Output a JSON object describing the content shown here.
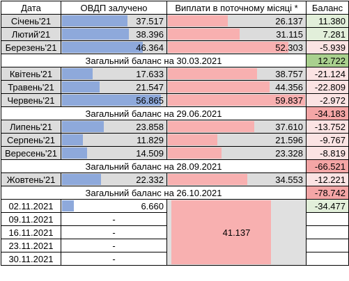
{
  "headers": {
    "date": "Дата",
    "ovdp": "ОВДП залучено",
    "payments": "Виплати в поточному місяці *",
    "balance": "Баланс"
  },
  "rows": [
    {
      "type": "month",
      "date": "Січень'21",
      "ovdp": "37.517",
      "ovdp_v": 37.517,
      "pay": "26.137",
      "pay_v": 26.137,
      "bal": "11.380",
      "bal_bg": "#e2efda"
    },
    {
      "type": "month",
      "date": "Лютий'21",
      "ovdp": "38.396",
      "ovdp_v": 38.396,
      "pay": "31.115",
      "pay_v": 31.115,
      "bal": "7.281",
      "bal_bg": "#e2efda"
    },
    {
      "type": "month",
      "date": "Березень'21",
      "ovdp": "46.364",
      "ovdp_v": 46.364,
      "pay": "52.303",
      "pay_v": 52.303,
      "bal": "-5.939",
      "bal_bg": "#fbe3e3"
    },
    {
      "type": "summary",
      "label": "Загальний баланс на 30.03.2021",
      "bal": "12.722",
      "bal_bg": "#a9d08e"
    },
    {
      "type": "month",
      "date": "Квітень'21",
      "ovdp": "17.633",
      "ovdp_v": 17.633,
      "pay": "38.757",
      "pay_v": 38.757,
      "bal": "-21.124",
      "bal_bg": "#fbe3e3"
    },
    {
      "type": "month",
      "date": "Травень'21",
      "ovdp": "21.547",
      "ovdp_v": 21.547,
      "pay": "44.356",
      "pay_v": 44.356,
      "bal": "-22.809",
      "bal_bg": "#fbe3e3"
    },
    {
      "type": "month",
      "date": "Червень'21",
      "ovdp": "56.865",
      "ovdp_v": 56.865,
      "pay": "59.837",
      "pay_v": 59.837,
      "bal": "-2.972",
      "bal_bg": "#fbe3e3"
    },
    {
      "type": "summary",
      "label": "Загальний баланс на 29.06.2021",
      "bal": "-34.183",
      "bal_bg": "#f4a6a6"
    },
    {
      "type": "month",
      "date": "Липень'21",
      "ovdp": "23.858",
      "ovdp_v": 23.858,
      "pay": "37.610",
      "pay_v": 37.61,
      "bal": "-13.752",
      "bal_bg": "#fbe3e3"
    },
    {
      "type": "month",
      "date": "Серпень'21",
      "ovdp": "11.829",
      "ovdp_v": 11.829,
      "pay": "21.596",
      "pay_v": 21.596,
      "bal": "-9.767",
      "bal_bg": "#fbe3e3"
    },
    {
      "type": "month",
      "date": "Вересень'21",
      "ovdp": "14.509",
      "ovdp_v": 14.509,
      "pay": "23.328",
      "pay_v": 23.328,
      "bal": "-8.819",
      "bal_bg": "#fbe3e3"
    },
    {
      "type": "summary",
      "label": "Загальний баланс на 28.09.2021",
      "bal": "-66.521",
      "bal_bg": "#f4a6a6"
    },
    {
      "type": "month",
      "date": "Жовтень'21",
      "ovdp": "22.332",
      "ovdp_v": 22.332,
      "pay": "34.553",
      "pay_v": 34.553,
      "bal": "-12.221",
      "bal_bg": "#fbe3e3"
    },
    {
      "type": "summary",
      "label": "Загальний баланс на 26.10.2021",
      "bal": "-78.742",
      "bal_bg": "#f4a6a6"
    }
  ],
  "weekly": [
    {
      "date": "02.11.2021",
      "ovdp": "6.660",
      "ovdp_v": 6.66,
      "bal": "-34.477",
      "bal_bg": "#e2efda"
    },
    {
      "date": "09.11.2021",
      "ovdp": "-",
      "ovdp_v": 0,
      "bal": ""
    },
    {
      "date": "16.11.2021",
      "ovdp": "-",
      "ovdp_v": 0,
      "bal": ""
    },
    {
      "date": "23.11.2021",
      "ovdp": "-",
      "ovdp_v": 0,
      "bal": ""
    },
    {
      "date": "30.11.2021",
      "ovdp": "-",
      "ovdp_v": 0,
      "bal": ""
    }
  ],
  "weekly_payment": "41.137",
  "scale_max": 60
}
